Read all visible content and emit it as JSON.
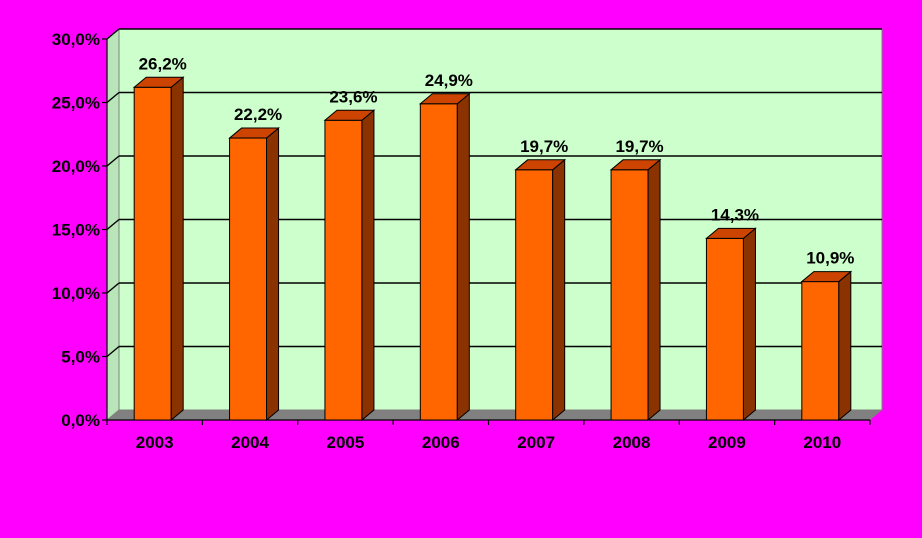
{
  "chart_data": {
    "type": "bar",
    "categories": [
      "2003",
      "2004",
      "2005",
      "2006",
      "2007",
      "2008",
      "2009",
      "2010"
    ],
    "values": [
      26.2,
      22.2,
      23.6,
      24.9,
      19.7,
      19.7,
      14.3,
      10.9
    ],
    "data_labels": [
      "26,2%",
      "22,2%",
      "23,6%",
      "24,9%",
      "19,7%",
      "19,7%",
      "14,3%",
      "10,9%"
    ],
    "y_ticks": [
      0,
      5,
      10,
      15,
      20,
      25,
      30
    ],
    "y_tick_labels": [
      "0,0%",
      "5,0%",
      "10,0%",
      "15,0%",
      "20,0%",
      "25,0%",
      "30,0%"
    ],
    "ylim": [
      0,
      30
    ],
    "grid": true,
    "colors": {
      "background": "#ff00ff",
      "plot_area": "#ccffcc",
      "bar_front": "#ff6600",
      "bar_top": "#cc4400",
      "bar_side": "#8b3300",
      "floor": "#808080",
      "gridline": "#000000"
    }
  }
}
